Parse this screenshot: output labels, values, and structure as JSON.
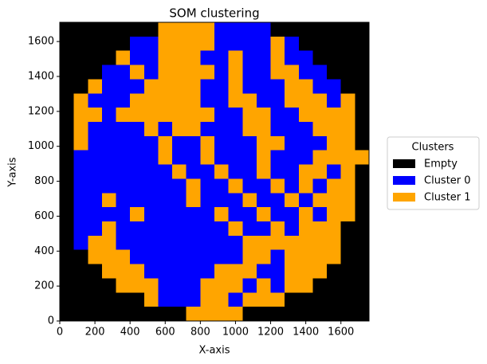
{
  "chart_data": {
    "type": "heatmap",
    "title": "SOM clustering",
    "x_label": "X-axis",
    "y_label": "Y-axis",
    "legend_title": "Clusters",
    "classes": [
      {
        "name": "Empty",
        "color": "#000000"
      },
      {
        "name": "Cluster 0",
        "color": "#0000ff"
      },
      {
        "name": "Cluster 1",
        "color": "#ffa500"
      }
    ],
    "xlim": [
      0,
      1760
    ],
    "ylim": [
      0,
      1710
    ],
    "xticks": [
      0,
      200,
      400,
      600,
      800,
      1000,
      1200,
      1400,
      1600
    ],
    "yticks": [
      0,
      200,
      400,
      600,
      800,
      1000,
      1200,
      1400,
      1600
    ],
    "z": [
      [
        0,
        0,
        0,
        0,
        0,
        0,
        0,
        2,
        2,
        2,
        2,
        1,
        1,
        1,
        1,
        0,
        0,
        0,
        0,
        0,
        0,
        0
      ],
      [
        0,
        0,
        0,
        0,
        0,
        1,
        1,
        2,
        2,
        2,
        2,
        1,
        1,
        1,
        1,
        2,
        1,
        0,
        0,
        0,
        0,
        0
      ],
      [
        0,
        0,
        0,
        0,
        2,
        1,
        1,
        2,
        2,
        2,
        1,
        1,
        2,
        1,
        1,
        2,
        1,
        1,
        0,
        0,
        0,
        0
      ],
      [
        0,
        0,
        0,
        1,
        1,
        2,
        1,
        2,
        2,
        2,
        2,
        1,
        2,
        1,
        1,
        2,
        2,
        1,
        1,
        0,
        0,
        0
      ],
      [
        0,
        0,
        2,
        1,
        1,
        1,
        2,
        2,
        2,
        2,
        1,
        1,
        2,
        1,
        1,
        1,
        2,
        2,
        1,
        1,
        0,
        0
      ],
      [
        0,
        2,
        1,
        1,
        1,
        2,
        2,
        2,
        2,
        2,
        1,
        1,
        2,
        2,
        1,
        1,
        2,
        2,
        2,
        1,
        2,
        0
      ],
      [
        0,
        2,
        2,
        1,
        2,
        2,
        2,
        2,
        2,
        2,
        2,
        1,
        1,
        2,
        2,
        1,
        1,
        2,
        2,
        2,
        2,
        0
      ],
      [
        0,
        2,
        1,
        1,
        1,
        1,
        2,
        1,
        2,
        2,
        1,
        1,
        1,
        2,
        2,
        1,
        1,
        1,
        2,
        2,
        2,
        0
      ],
      [
        0,
        2,
        1,
        1,
        1,
        1,
        1,
        2,
        1,
        1,
        2,
        1,
        1,
        1,
        2,
        2,
        1,
        1,
        1,
        2,
        2,
        0
      ],
      [
        0,
        1,
        1,
        1,
        1,
        1,
        1,
        2,
        1,
        1,
        2,
        1,
        1,
        1,
        2,
        1,
        1,
        1,
        2,
        2,
        2,
        2
      ],
      [
        0,
        1,
        1,
        1,
        1,
        1,
        1,
        1,
        2,
        1,
        1,
        2,
        1,
        1,
        2,
        1,
        1,
        2,
        2,
        1,
        2,
        0
      ],
      [
        0,
        1,
        1,
        1,
        1,
        1,
        1,
        1,
        1,
        2,
        1,
        1,
        2,
        1,
        1,
        2,
        1,
        2,
        1,
        2,
        2,
        0
      ],
      [
        0,
        1,
        1,
        2,
        1,
        1,
        1,
        1,
        1,
        2,
        1,
        1,
        1,
        2,
        1,
        1,
        2,
        1,
        2,
        2,
        2,
        0
      ],
      [
        0,
        1,
        1,
        1,
        1,
        2,
        1,
        1,
        1,
        1,
        1,
        2,
        1,
        1,
        2,
        1,
        1,
        2,
        1,
        2,
        2,
        0
      ],
      [
        0,
        1,
        1,
        2,
        1,
        1,
        1,
        1,
        1,
        1,
        1,
        1,
        2,
        1,
        1,
        2,
        1,
        2,
        2,
        2,
        0,
        0
      ],
      [
        0,
        1,
        2,
        2,
        1,
        1,
        1,
        1,
        1,
        1,
        1,
        1,
        1,
        2,
        2,
        2,
        2,
        2,
        2,
        2,
        0,
        0
      ],
      [
        0,
        0,
        2,
        2,
        2,
        1,
        1,
        1,
        1,
        1,
        1,
        1,
        1,
        2,
        2,
        1,
        2,
        2,
        2,
        2,
        0,
        0
      ],
      [
        0,
        0,
        0,
        2,
        2,
        2,
        1,
        1,
        1,
        1,
        1,
        2,
        2,
        2,
        1,
        1,
        2,
        2,
        2,
        0,
        0,
        0
      ],
      [
        0,
        0,
        0,
        0,
        2,
        2,
        2,
        1,
        1,
        1,
        2,
        2,
        2,
        1,
        2,
        1,
        2,
        2,
        0,
        0,
        0,
        0
      ],
      [
        0,
        0,
        0,
        0,
        0,
        0,
        2,
        1,
        1,
        1,
        2,
        2,
        1,
        2,
        2,
        2,
        0,
        0,
        0,
        0,
        0,
        0
      ],
      [
        0,
        0,
        0,
        0,
        0,
        0,
        0,
        0,
        0,
        2,
        2,
        2,
        2,
        0,
        0,
        0,
        0,
        0,
        0,
        0,
        0,
        0
      ]
    ]
  }
}
